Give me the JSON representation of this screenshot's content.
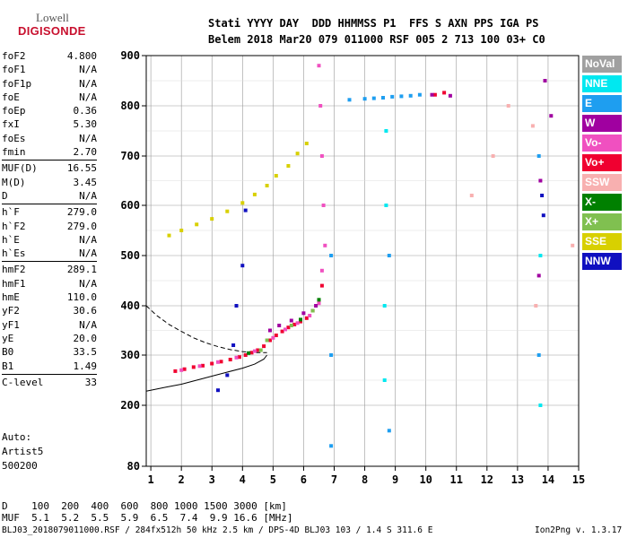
{
  "logo": {
    "line1": "Lowell",
    "line2": "DIGISONDE"
  },
  "header": {
    "row1": "Stati YYYY DAY  DDD HHMMSS P1  FFS S AXN PPS IGA PS",
    "row2": "Belem 2018 Mar20 079 011000 RSF 005 2 713 100 03+ C0"
  },
  "params": {
    "group1": [
      {
        "name": "foF2",
        "value": "4.800"
      },
      {
        "name": "foF1",
        "value": "N/A"
      },
      {
        "name": "foF1p",
        "value": "N/A"
      },
      {
        "name": "foE",
        "value": "N/A"
      },
      {
        "name": "foEp",
        "value": "0.36"
      },
      {
        "name": "fxI",
        "value": "5.30"
      },
      {
        "name": "foEs",
        "value": "N/A"
      },
      {
        "name": "fmin",
        "value": "2.70"
      }
    ],
    "group2": [
      {
        "name": "MUF(D)",
        "value": "16.55"
      },
      {
        "name": "M(D)",
        "value": "3.45"
      },
      {
        "name": "D",
        "value": "N/A"
      }
    ],
    "group3": [
      {
        "name": "h`F",
        "value": "279.0"
      },
      {
        "name": "h`F2",
        "value": "279.0"
      },
      {
        "name": "h`E",
        "value": "N/A"
      },
      {
        "name": "h`Es",
        "value": "N/A"
      }
    ],
    "group4": [
      {
        "name": "hmF2",
        "value": "289.1"
      },
      {
        "name": "hmF1",
        "value": "N/A"
      },
      {
        "name": "hmE",
        "value": "110.0"
      },
      {
        "name": "yF2",
        "value": "30.6"
      },
      {
        "name": "yF1",
        "value": "N/A"
      },
      {
        "name": "yE",
        "value": "20.0"
      },
      {
        "name": "B0",
        "value": "33.5"
      },
      {
        "name": "B1",
        "value": "1.49"
      }
    ],
    "group5": [
      {
        "name": "C-level",
        "value": "33"
      }
    ]
  },
  "auto": {
    "line1": "Auto:",
    "line2": "Artist5",
    "line3": "500200"
  },
  "legend": [
    {
      "label": "NoVal",
      "color": "#a0a0a0"
    },
    {
      "label": "NNE",
      "color": "#00e8f0"
    },
    {
      "label": "E",
      "color": "#1e9ef0"
    },
    {
      "label": "W",
      "color": "#a000a0"
    },
    {
      "label": "Vo-",
      "color": "#f050c0"
    },
    {
      "label": "Vo+",
      "color": "#f00030"
    },
    {
      "label": "SSW",
      "color": "#f8b0b0"
    },
    {
      "label": "X-",
      "color": "#008000"
    },
    {
      "label": "X+",
      "color": "#80c050"
    },
    {
      "label": "SSE",
      "color": "#d8d000"
    },
    {
      "label": "NNW",
      "color": "#1010c0"
    }
  ],
  "footer": {
    "d_row": "D    100  200  400  600  800 1000 1500 3000 [km]",
    "muf_row": "MUF  5.1  5.2  5.5  5.9  6.5  7.4  9.9 16.6 [MHz]",
    "file_info": "BLJ03_2018079011000.RSF / 284fx512h 50 kHz 2.5 km / DPS-4D BLJ03 103 / 1.4 S 311.6 E",
    "version": "Ion2Png v. 1.3.17"
  },
  "chart_data": {
    "type": "scatter",
    "title": "",
    "xlabel": "",
    "ylabel": "",
    "xlim": [
      0.85,
      15.0
    ],
    "ylim": [
      80,
      900
    ],
    "x_ticks": [
      1,
      2,
      3,
      4,
      5,
      6,
      7,
      8,
      9,
      10,
      11,
      12,
      13,
      14,
      15
    ],
    "y_ticks": [
      80,
      200,
      300,
      400,
      500,
      600,
      700,
      800,
      900
    ],
    "grid": true,
    "series": [
      {
        "name": "Vo+",
        "color": "#f00030",
        "points": [
          [
            1.8,
            268
          ],
          [
            2.1,
            272
          ],
          [
            2.4,
            276
          ],
          [
            2.7,
            279
          ],
          [
            3.0,
            283
          ],
          [
            3.3,
            287
          ],
          [
            3.6,
            291
          ],
          [
            3.9,
            296
          ],
          [
            4.1,
            300
          ],
          [
            4.3,
            305
          ],
          [
            4.5,
            310
          ],
          [
            4.7,
            318
          ],
          [
            4.9,
            330
          ],
          [
            5.1,
            340
          ],
          [
            5.3,
            348
          ],
          [
            5.5,
            356
          ],
          [
            5.7,
            362
          ],
          [
            5.9,
            368
          ],
          [
            6.1,
            375
          ],
          [
            6.3,
            390
          ],
          [
            6.5,
            410
          ],
          [
            6.6,
            440
          ],
          [
            10.3,
            822
          ],
          [
            10.6,
            826
          ]
        ]
      },
      {
        "name": "Vo-",
        "color": "#f050c0",
        "points": [
          [
            2.0,
            270
          ],
          [
            2.6,
            278
          ],
          [
            3.2,
            286
          ],
          [
            3.8,
            295
          ],
          [
            4.4,
            308
          ],
          [
            5.0,
            335
          ],
          [
            5.4,
            352
          ],
          [
            5.8,
            365
          ],
          [
            6.2,
            380
          ],
          [
            6.5,
            405
          ],
          [
            6.6,
            470
          ],
          [
            6.7,
            520
          ],
          [
            6.65,
            600
          ],
          [
            6.6,
            700
          ],
          [
            6.55,
            800
          ],
          [
            6.5,
            880
          ]
        ]
      },
      {
        "name": "W",
        "color": "#a000a0",
        "points": [
          [
            4.9,
            350
          ],
          [
            5.2,
            360
          ],
          [
            5.6,
            370
          ],
          [
            6.0,
            385
          ],
          [
            6.4,
            400
          ],
          [
            10.2,
            822
          ],
          [
            10.8,
            820
          ],
          [
            13.7,
            460
          ],
          [
            13.75,
            650
          ],
          [
            13.9,
            850
          ],
          [
            14.1,
            780
          ]
        ]
      },
      {
        "name": "E",
        "color": "#1e9ef0",
        "points": [
          [
            7.5,
            812
          ],
          [
            8.0,
            814
          ],
          [
            8.3,
            815
          ],
          [
            8.6,
            816
          ],
          [
            8.9,
            818
          ],
          [
            9.2,
            819
          ],
          [
            9.5,
            820
          ],
          [
            9.8,
            822
          ],
          [
            6.9,
            500
          ],
          [
            6.9,
            300
          ],
          [
            6.9,
            120
          ],
          [
            8.8,
            500
          ],
          [
            8.8,
            150
          ],
          [
            13.7,
            700
          ],
          [
            13.7,
            300
          ]
        ]
      },
      {
        "name": "NNE",
        "color": "#00e8f0",
        "points": [
          [
            8.65,
            250
          ],
          [
            8.65,
            400
          ],
          [
            8.7,
            600
          ],
          [
            8.7,
            750
          ],
          [
            13.75,
            500
          ],
          [
            13.75,
            200
          ]
        ]
      },
      {
        "name": "SSE",
        "color": "#d8d000",
        "points": [
          [
            1.6,
            540
          ],
          [
            2.0,
            550
          ],
          [
            2.5,
            562
          ],
          [
            3.0,
            573
          ],
          [
            3.5,
            588
          ],
          [
            4.0,
            605
          ],
          [
            4.4,
            622
          ],
          [
            4.8,
            640
          ],
          [
            5.1,
            660
          ],
          [
            5.5,
            680
          ],
          [
            5.8,
            705
          ],
          [
            6.1,
            725
          ]
        ]
      },
      {
        "name": "X+",
        "color": "#80c050",
        "points": [
          [
            4.6,
            310
          ],
          [
            4.8,
            330
          ],
          [
            5.6,
            360
          ],
          [
            6.3,
            390
          ]
        ]
      },
      {
        "name": "X-",
        "color": "#008000",
        "points": [
          [
            4.2,
            304
          ],
          [
            5.9,
            372
          ],
          [
            6.5,
            412
          ]
        ]
      },
      {
        "name": "NNW",
        "color": "#1010c0",
        "points": [
          [
            3.2,
            230
          ],
          [
            3.5,
            260
          ],
          [
            3.7,
            320
          ],
          [
            3.8,
            400
          ],
          [
            4.0,
            480
          ],
          [
            4.1,
            590
          ],
          [
            13.8,
            620
          ],
          [
            13.85,
            580
          ]
        ]
      },
      {
        "name": "SSW",
        "color": "#f8b0b0",
        "points": [
          [
            11.5,
            620
          ],
          [
            12.2,
            700
          ],
          [
            12.7,
            800
          ],
          [
            13.5,
            760
          ],
          [
            13.6,
            400
          ],
          [
            14.8,
            520
          ]
        ]
      }
    ],
    "profile": {
      "solid": [
        [
          0.85,
          228
        ],
        [
          1.5,
          236
        ],
        [
          2.0,
          242
        ],
        [
          2.5,
          250
        ],
        [
          3.0,
          258
        ],
        [
          3.5,
          266
        ],
        [
          4.0,
          274
        ],
        [
          4.4,
          282
        ],
        [
          4.7,
          292
        ],
        [
          4.8,
          300
        ]
      ],
      "dashed": [
        [
          0.85,
          400
        ],
        [
          1.2,
          380
        ],
        [
          1.6,
          362
        ],
        [
          2.0,
          348
        ],
        [
          2.4,
          335
        ],
        [
          2.8,
          325
        ],
        [
          3.2,
          317
        ],
        [
          3.6,
          311
        ],
        [
          4.0,
          307
        ],
        [
          4.4,
          305
        ],
        [
          4.8,
          305
        ]
      ]
    }
  }
}
